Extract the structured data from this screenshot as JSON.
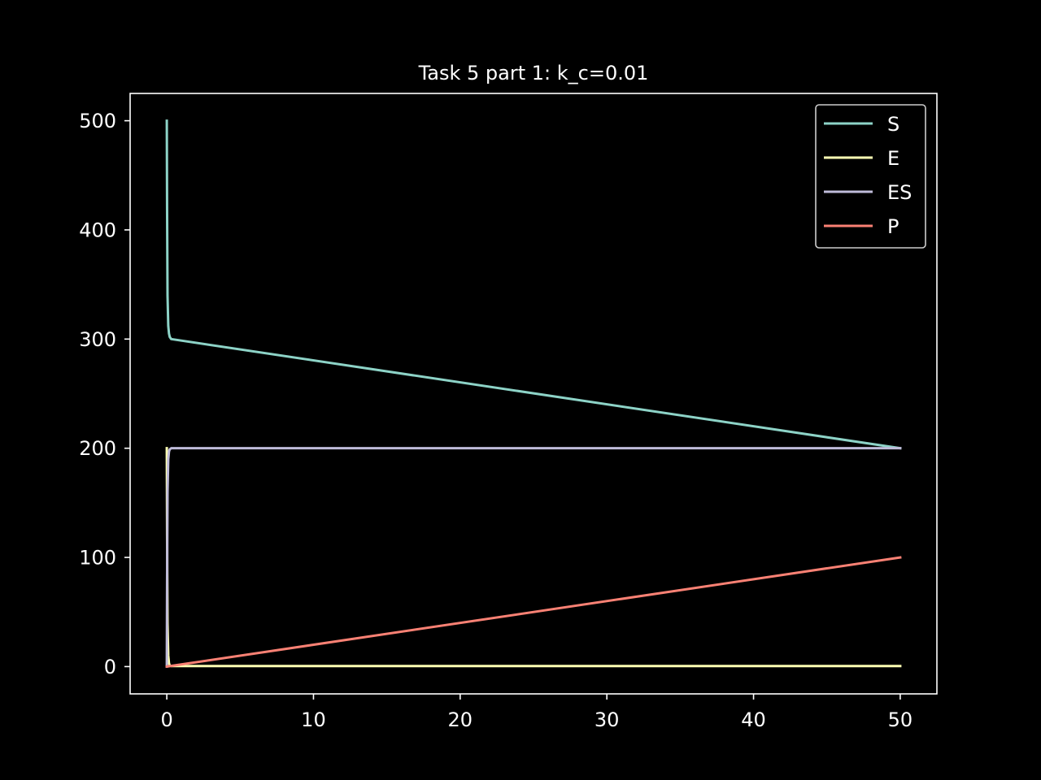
{
  "chart_data": {
    "type": "line",
    "title": "Task 5 part 1: k_c=0.01",
    "xlabel": "",
    "ylabel": "",
    "xlim": [
      -2.5,
      52.5
    ],
    "ylim": [
      -25,
      525
    ],
    "xticks": [
      0,
      10,
      20,
      30,
      40,
      50
    ],
    "yticks": [
      0,
      100,
      200,
      300,
      400,
      500
    ],
    "xtick_labels": [
      "0",
      "10",
      "20",
      "30",
      "40",
      "50"
    ],
    "ytick_labels": [
      "0",
      "100",
      "200",
      "300",
      "400",
      "500"
    ],
    "grid": false,
    "legend_position": "top-right",
    "series": [
      {
        "name": "S",
        "color": "#8dd3c7",
        "x": [
          0,
          0.02,
          0.05,
          0.1,
          0.15,
          0.2,
          0.3,
          50
        ],
        "y": [
          500,
          420,
          340,
          312,
          305,
          302,
          300,
          200
        ]
      },
      {
        "name": "E",
        "color": "#feffb3",
        "x": [
          0,
          0.02,
          0.05,
          0.1,
          0.15,
          0.2,
          0.3,
          50
        ],
        "y": [
          200,
          120,
          40,
          10,
          3,
          1,
          0.5,
          0.5
        ]
      },
      {
        "name": "ES",
        "color": "#bfbbd9",
        "x": [
          0,
          0.02,
          0.05,
          0.1,
          0.15,
          0.2,
          0.3,
          50
        ],
        "y": [
          0,
          80,
          160,
          190,
          197,
          199,
          200,
          200
        ]
      },
      {
        "name": "P",
        "color": "#fa8174",
        "x": [
          0,
          50
        ],
        "y": [
          0,
          100
        ]
      }
    ]
  }
}
